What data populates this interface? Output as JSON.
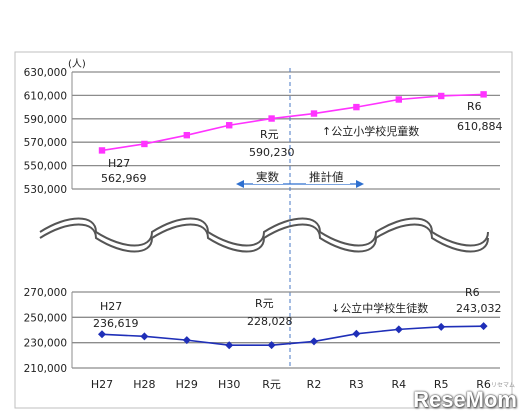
{
  "chart_data": [
    {
      "type": "line",
      "unit_label": "(人)",
      "series": [
        {
          "name": "公立小学校児童数",
          "label": "↑公立小学校児童数",
          "color": "#ff33ff",
          "marker": "square",
          "values": [
            562969,
            568500,
            576000,
            584500,
            590230,
            594500,
            600000,
            606500,
            609500,
            610884
          ]
        }
      ],
      "ylim": [
        530000,
        630000
      ],
      "yticks": [
        "530,000",
        "550,000",
        "570,000",
        "590,000",
        "610,000",
        "630,000"
      ],
      "annotations": [
        {
          "index": 0,
          "name": "H27",
          "value": "562,969"
        },
        {
          "index": 4,
          "name": "R元",
          "value": "590,230"
        },
        {
          "index": 9,
          "name": "R6",
          "value": "610,884"
        }
      ],
      "regions": {
        "actual": "実数",
        "estimate": "推計値"
      }
    },
    {
      "type": "line",
      "categories": [
        "H27",
        "H28",
        "H29",
        "H30",
        "R元",
        "R2",
        "R3",
        "R4",
        "R5",
        "R6"
      ],
      "series": [
        {
          "name": "公立中学校生徒数",
          "label": "↓公立中学校生徒数",
          "color": "#1f2fb8",
          "marker": "diamond",
          "values": [
            236619,
            235000,
            232000,
            228000,
            228028,
            231000,
            237000,
            240500,
            242500,
            243032
          ]
        }
      ],
      "ylim": [
        210000,
        270000
      ],
      "yticks": [
        "210,000",
        "230,000",
        "250,000",
        "270,000"
      ],
      "annotations": [
        {
          "index": 0,
          "name": "H27",
          "value": "236,619"
        },
        {
          "index": 4,
          "name": "R元",
          "value": "228,028"
        },
        {
          "index": 9,
          "name": "R6",
          "value": "243,032"
        }
      ]
    }
  ],
  "watermark": "ReseMom",
  "watermark_sub": "リセマム"
}
